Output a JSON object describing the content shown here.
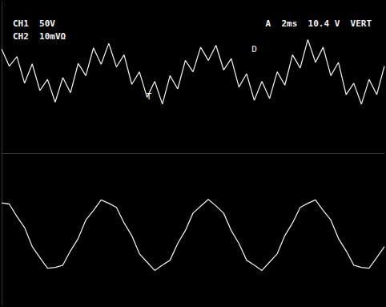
{
  "chart_data": {
    "type": "line",
    "header": {
      "left": [
        "CH1  50V",
        "CH2  10mVΩ"
      ],
      "right": "A  2ms  10.4 V  VERT"
    },
    "x": [
      0,
      0.4,
      0.8,
      1.2,
      1.6,
      2.0,
      2.4,
      2.8,
      3.2,
      3.6,
      4.0,
      4.4,
      4.8,
      5.2,
      5.6,
      6.0,
      6.4,
      6.8,
      7.2,
      7.6,
      8.0,
      8.4,
      8.8,
      9.2,
      9.6,
      10.0,
      10.4,
      10.8,
      11.2,
      11.6,
      12.0,
      12.4,
      12.8,
      13.2,
      13.6,
      14.0,
      14.4,
      14.8,
      15.2,
      15.6,
      16.0,
      16.4,
      16.8,
      17.2,
      17.6,
      18.0,
      18.4,
      18.8,
      19.2,
      19.6,
      20.0
    ],
    "series": [
      {
        "color": "#e8e8e8",
        "values": [
          2.75,
          2.3,
          2.55,
          1.85,
          2.36,
          1.66,
          1.95,
          1.35,
          2.0,
          1.6,
          2.37,
          2.05,
          2.78,
          2.35,
          2.9,
          2.28,
          2.6,
          1.82,
          2.15,
          1.48,
          1.9,
          1.3,
          2.05,
          1.7,
          2.45,
          2.15,
          2.8,
          2.45,
          2.85,
          2.2,
          2.5,
          1.75,
          2.1,
          1.4,
          1.9,
          1.45,
          2.15,
          1.8,
          2.6,
          2.25,
          3.0,
          2.4,
          2.8,
          2.05,
          2.4,
          1.55,
          1.85,
          1.3,
          1.95,
          1.55,
          2.3
        ]
      },
      {
        "color": "#e8e8e8",
        "values": [
          -1.3,
          -1.33,
          -1.66,
          -1.95,
          -2.45,
          -2.74,
          -3.02,
          -3.0,
          -2.94,
          -2.56,
          -2.24,
          -1.75,
          -1.5,
          -1.22,
          -1.31,
          -1.42,
          -1.83,
          -2.16,
          -2.64,
          -2.86,
          -3.08,
          -2.94,
          -2.81,
          -2.37,
          -2.03,
          -1.57,
          -1.39,
          -1.21,
          -1.38,
          -1.57,
          -2.03,
          -2.37,
          -2.81,
          -2.94,
          -3.08,
          -2.86,
          -2.64,
          -2.16,
          -1.83,
          -1.42,
          -1.31,
          -1.22,
          -1.5,
          -1.75,
          -2.24,
          -2.56,
          -2.94,
          -3.0,
          -3.02,
          -2.74,
          -2.45
        ]
      }
    ],
    "xlim": [
      0,
      20
    ],
    "ylim": [
      -4,
      4
    ],
    "grid": false,
    "tick_labels": false,
    "annotations": [
      {
        "text": "T",
        "x": 7.7,
        "y": 1.5
      },
      {
        "text": "D",
        "x": 13.2,
        "y": 2.75
      }
    ]
  }
}
